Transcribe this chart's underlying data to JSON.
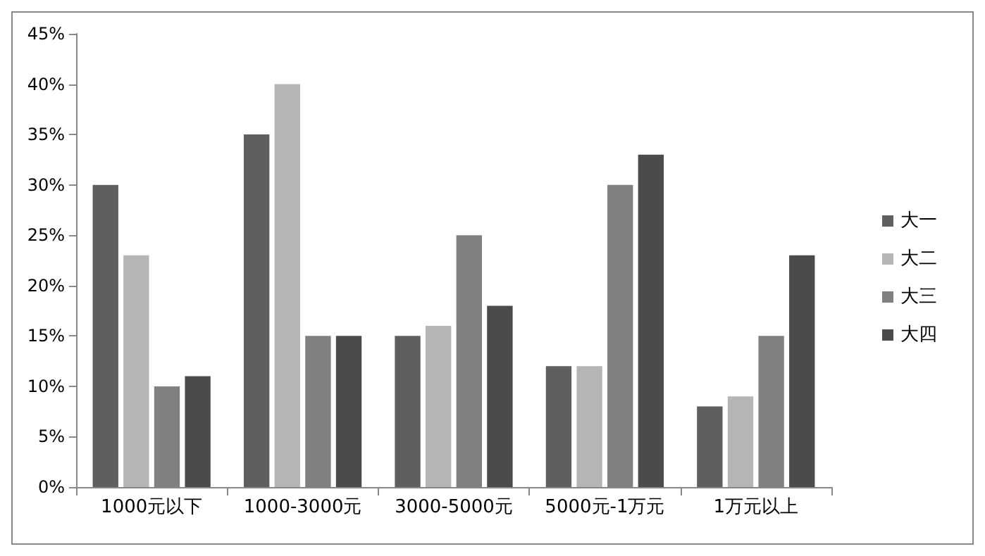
{
  "chart_data": {
    "type": "bar",
    "categories": [
      "1000元以下",
      "1000-3000元",
      "3000-5000元",
      "5000元-1万元",
      "1万元以上"
    ],
    "series": [
      {
        "name": "大一",
        "color": "#5f5f5f",
        "values": [
          30,
          35,
          15,
          12,
          8
        ]
      },
      {
        "name": "大二",
        "color": "#b5b5b5",
        "values": [
          23,
          40,
          16,
          12,
          9
        ]
      },
      {
        "name": "大三",
        "color": "#808080",
        "values": [
          10,
          15,
          25,
          30,
          15
        ]
      },
      {
        "name": "大四",
        "color": "#4b4b4b",
        "values": [
          11,
          15,
          18,
          33,
          23
        ]
      }
    ],
    "ylim": [
      0,
      45
    ],
    "yticks": [
      {
        "value": 0,
        "label": "0%"
      },
      {
        "value": 5,
        "label": "5%"
      },
      {
        "value": 10,
        "label": "10%"
      },
      {
        "value": 15,
        "label": "15%"
      },
      {
        "value": 20,
        "label": "20%"
      },
      {
        "value": 25,
        "label": "25%"
      },
      {
        "value": 30,
        "label": "30%"
      },
      {
        "value": 35,
        "label": "35%"
      },
      {
        "value": 40,
        "label": "40%"
      },
      {
        "value": 45,
        "label": "45%"
      }
    ],
    "grid": false,
    "legend": "right"
  }
}
